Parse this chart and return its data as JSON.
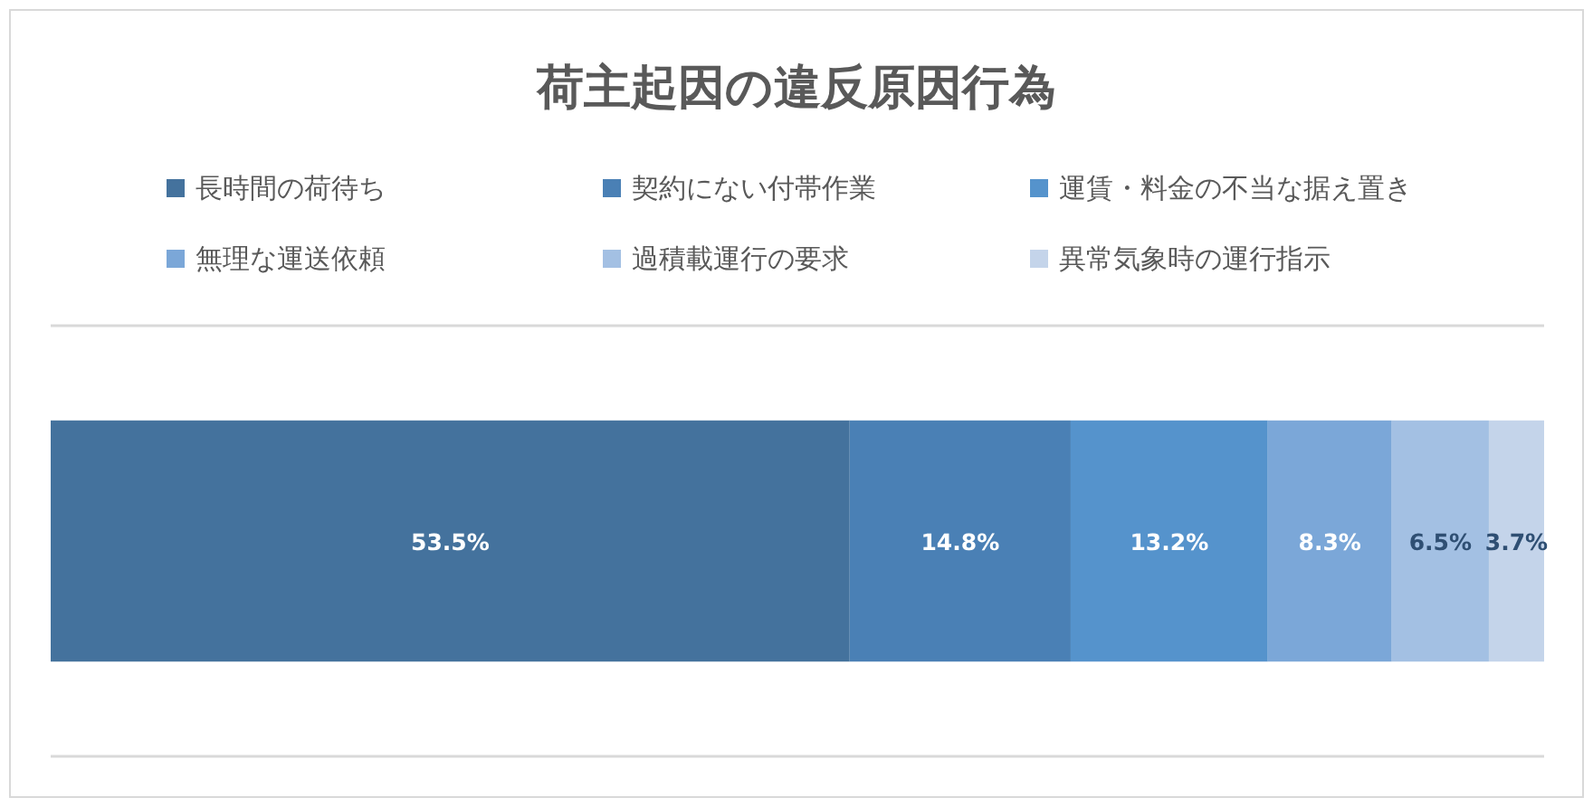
{
  "chart_data": {
    "type": "bar",
    "orientation": "horizontal",
    "stacked": true,
    "title": "荷主起因の違反原因行為",
    "categories": [
      null
    ],
    "legend": "top",
    "series": [
      {
        "name": "長時間の荷待ち",
        "color": "#44729d",
        "values": [
          53.5
        ],
        "value_labels": [
          "53.5%"
        ]
      },
      {
        "name": "契約にない付帯作業",
        "color": "#4a80b5",
        "values": [
          14.8
        ],
        "value_labels": [
          "14.8%"
        ]
      },
      {
        "name": "運賃・料金の不当な据え置き",
        "color": "#5593cc",
        "values": [
          13.2
        ],
        "value_labels": [
          "13.2%"
        ]
      },
      {
        "name": "無理な運送依頼",
        "color": "#7ba7d8",
        "values": [
          8.3
        ],
        "value_labels": [
          "8.3%"
        ]
      },
      {
        "name": "過積載運行の要求",
        "color": "#a3c0e3",
        "values": [
          6.5
        ],
        "value_labels": [
          "6.5%"
        ]
      },
      {
        "name": "異常気象時の運行指示",
        "color": "#c4d4ea",
        "values": [
          3.7
        ],
        "value_labels": [
          "3.7%"
        ]
      }
    ]
  }
}
